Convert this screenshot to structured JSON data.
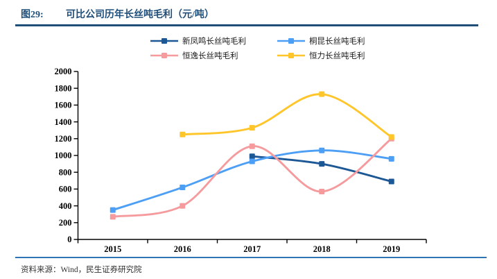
{
  "figure": {
    "label": "图29:",
    "title": "可比公司历年长丝吨毛利（元/吨）"
  },
  "source_line": {
    "label": "资料来源：",
    "text": "Wind，民生证券研究院"
  },
  "styles": {
    "accent_navy": "#1F4E79",
    "bottom_rule_blue": "#2E74B5",
    "axis_color": "#000000"
  },
  "chart_data": {
    "type": "line",
    "title": "可比公司历年长丝吨毛利（元/吨）",
    "categories": [
      "2015",
      "2016",
      "2017",
      "2018",
      "2019"
    ],
    "series": [
      {
        "name": "新凤鸣长丝吨毛利",
        "color": "#1C5796",
        "values": [
          null,
          null,
          990,
          900,
          690
        ]
      },
      {
        "name": "桐昆长丝吨毛利",
        "color": "#4D9FF5",
        "values": [
          350,
          620,
          930,
          1060,
          960
        ]
      },
      {
        "name": "恒逸长丝吨毛利",
        "color": "#F59B9E",
        "values": [
          270,
          400,
          1110,
          570,
          1200
        ]
      },
      {
        "name": "恒力长丝吨毛利",
        "color": "#FFC62B",
        "values": [
          null,
          1250,
          1330,
          1730,
          1220
        ]
      }
    ],
    "ylim": [
      0,
      2000
    ],
    "y_ticks": [
      0,
      200,
      400,
      600,
      800,
      1000,
      1200,
      1400,
      1600,
      1800,
      2000
    ],
    "smooth": true,
    "markers": "square",
    "legend_position": "top",
    "grid": false
  }
}
